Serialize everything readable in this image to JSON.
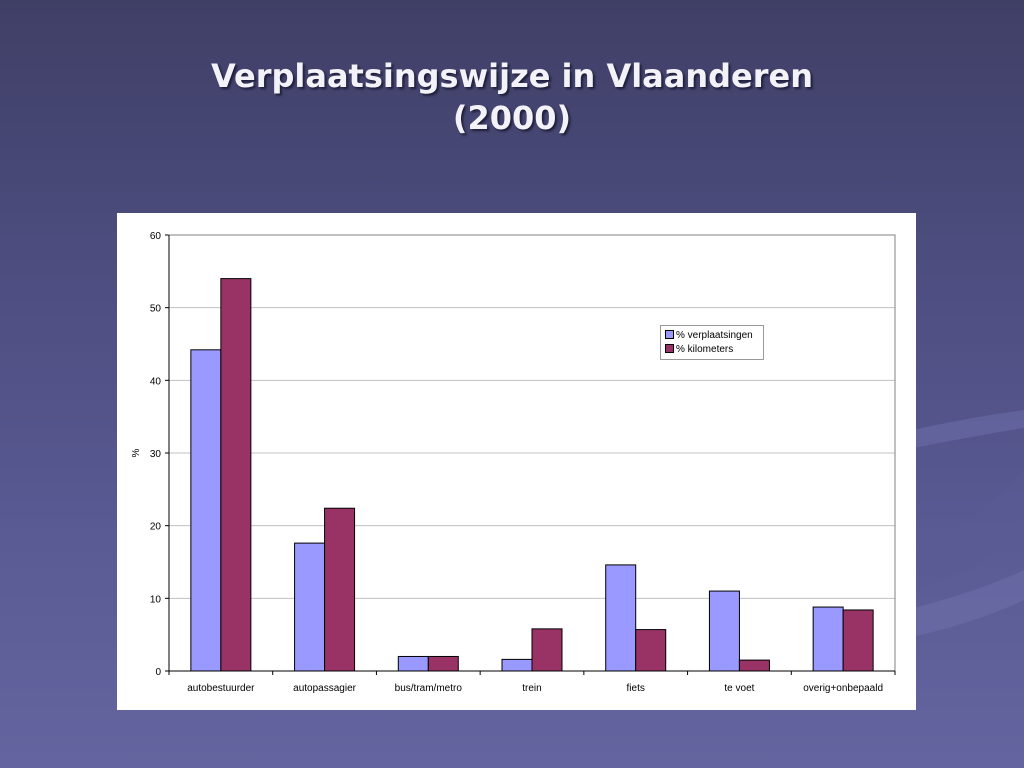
{
  "slide": {
    "title_line1": "Verplaatsingswijze in Vlaanderen",
    "title_line2": "(2000)"
  },
  "chart_data": {
    "type": "bar",
    "title": "",
    "xlabel": "",
    "ylabel": "%",
    "ylim": [
      0,
      60
    ],
    "yticks": [
      0,
      10,
      20,
      30,
      40,
      50,
      60
    ],
    "grid": true,
    "legend_position": "top-right",
    "categories": [
      "autobestuurder",
      "autopassagier",
      "bus/tram/metro",
      "trein",
      "fiets",
      "te voet",
      "overig+onbepaald"
    ],
    "series": [
      {
        "name": "% verplaatsingen",
        "color": "#9999ff",
        "values": [
          44.2,
          17.6,
          2.0,
          1.6,
          14.6,
          11.0,
          8.8
        ]
      },
      {
        "name": "% kilometers",
        "color": "#993366",
        "values": [
          54.0,
          22.4,
          2.0,
          5.8,
          5.7,
          1.5,
          8.4
        ]
      }
    ]
  }
}
